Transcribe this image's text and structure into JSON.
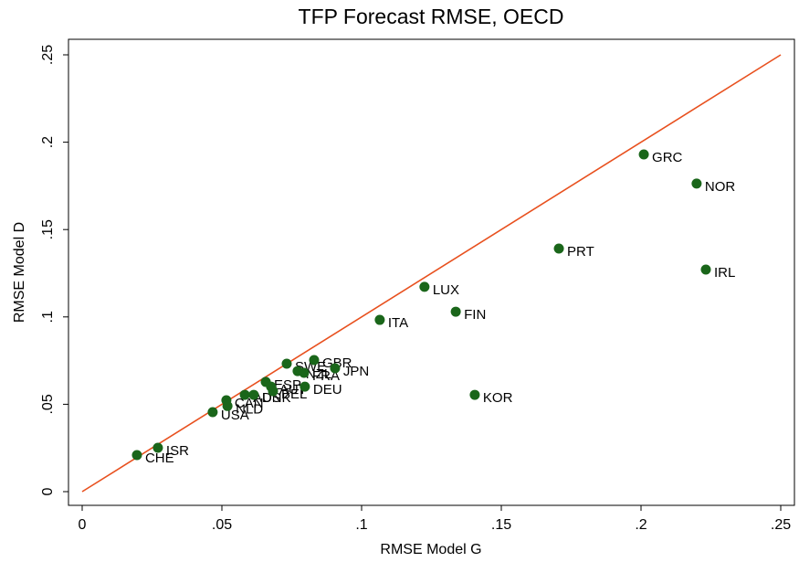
{
  "chart_data": {
    "type": "scatter",
    "title": "TFP Forecast RMSE, OECD",
    "x_label": "RMSE Model G",
    "y_label": "RMSE Model D",
    "color": "#1a661a",
    "line_color": "#e8501e",
    "diagonal": true,
    "xlim": [
      0,
      0.25
    ],
    "ylim": [
      0,
      0.25
    ],
    "xticks": [
      0,
      {
        "value": 0.05,
        "label": ".05"
      },
      {
        "value": 0.1,
        "label": ".1"
      },
      {
        "value": 0.15,
        "label": ".15"
      },
      {
        "value": 0.2,
        "label": ".2"
      },
      {
        "value": 0.25,
        "label": ".25"
      }
    ],
    "yticks": [
      0,
      {
        "value": 0.05,
        "label": ".05"
      },
      {
        "value": 0.1,
        "label": ".1"
      },
      {
        "value": 0.15,
        "label": ".15"
      },
      {
        "value": 0.2,
        "label": ".2"
      },
      {
        "value": 0.25,
        "label": ".25"
      }
    ],
    "labels": [
      "CHE",
      "ISR",
      "USA",
      "NLD",
      "CAN",
      "AUS",
      "DNK",
      "ESP",
      "AUT",
      "BEL",
      "SWE",
      "NZL",
      "FRA",
      "GBR",
      "DEU",
      "JPN",
      "ITA",
      "LUX",
      "FIN",
      "KOR",
      "PRT",
      "GRC",
      "NOR",
      "IRL"
    ],
    "x": [
      0.0196,
      0.0271,
      0.0467,
      0.052,
      0.0516,
      0.0582,
      0.0614,
      0.0657,
      0.0676,
      0.0683,
      0.0732,
      0.0771,
      0.0794,
      0.083,
      0.0797,
      0.0905,
      0.1065,
      0.1225,
      0.1337,
      0.1405,
      0.1706,
      0.201,
      0.2199,
      0.2232
    ],
    "values": [
      0.0209,
      0.0251,
      0.0455,
      0.049,
      0.0523,
      0.0554,
      0.0554,
      0.0628,
      0.0601,
      0.0575,
      0.0732,
      0.069,
      0.068,
      0.0753,
      0.0601,
      0.0706,
      0.0983,
      0.1172,
      0.103,
      0.0554,
      0.1391,
      0.193,
      0.1763,
      0.1271
    ]
  }
}
